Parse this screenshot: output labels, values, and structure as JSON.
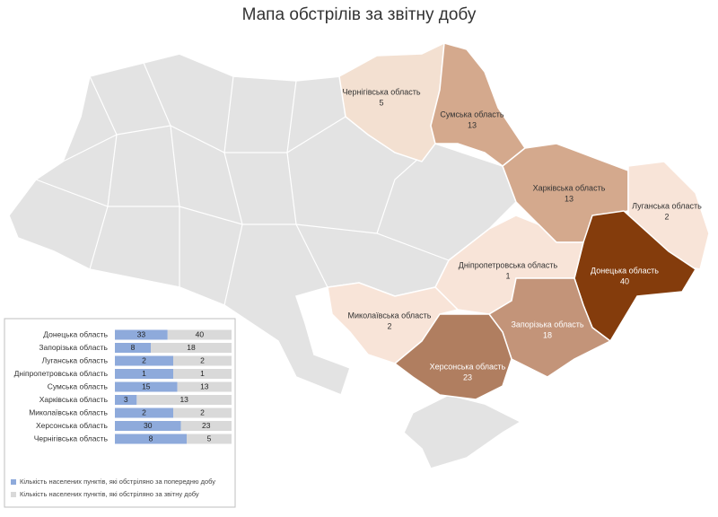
{
  "title": "Мапа обстрілів за звітну добу",
  "map": {
    "regions": [
      {
        "name": "Чернігівська область",
        "value": 5,
        "color": "#f3e0d1"
      },
      {
        "name": "Сумська область",
        "value": 13,
        "color": "#d4a98d"
      },
      {
        "name": "Харківська область",
        "value": 13,
        "color": "#d4a98d"
      },
      {
        "name": "Луганська область",
        "value": 2,
        "color": "#f8e4d8"
      },
      {
        "name": "Донецька область",
        "value": 40,
        "color": "#843c0c"
      },
      {
        "name": "Дніпропетровська область",
        "value": 1,
        "color": "#f8e4d8"
      },
      {
        "name": "Запорізька область",
        "value": 18,
        "color": "#c39479"
      },
      {
        "name": "Миколаївська область",
        "value": 2,
        "color": "#f8e4d8"
      },
      {
        "name": "Херсонська область",
        "value": 23,
        "color": "#b07e60"
      }
    ]
  },
  "chart_data": {
    "type": "bar",
    "orientation": "horizontal",
    "stacked_percent": true,
    "categories": [
      "Донецька область",
      "Запорізька область",
      "Луганська область",
      "Дніпропетровська область",
      "Сумська область",
      "Харківська область",
      "Миколаївська область",
      "Херсонська область",
      "Чернігівська область"
    ],
    "series": [
      {
        "name": "Кількість населених пунктів, які обстріляно за попередню добу",
        "color": "#8eaadb",
        "values": [
          33,
          8,
          2,
          1,
          15,
          3,
          2,
          30,
          8
        ]
      },
      {
        "name": "Кількість населених пунктів, які обстріляно за звітну добу",
        "color": "#d9d9d9",
        "values": [
          40,
          18,
          2,
          1,
          13,
          13,
          2,
          23,
          5
        ]
      }
    ]
  }
}
